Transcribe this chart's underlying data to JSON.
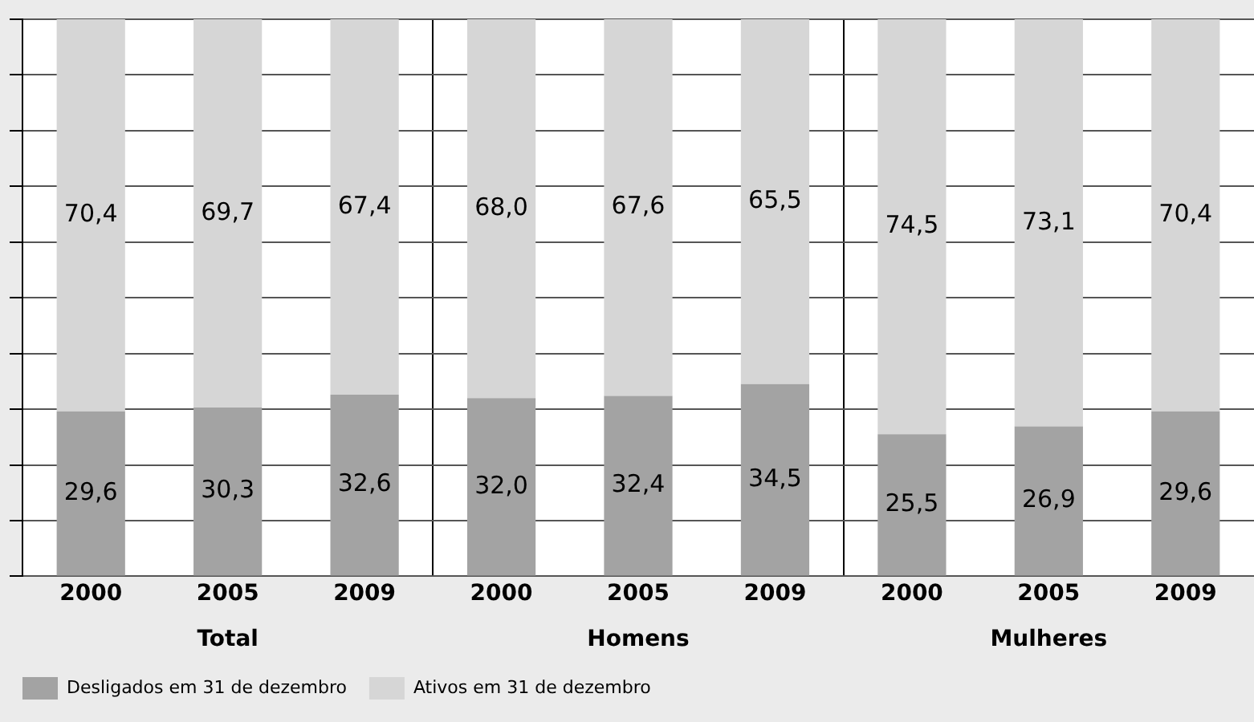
{
  "chart_data": {
    "type": "bar",
    "stacked": true,
    "categories": [
      "2000",
      "2005",
      "2009",
      "2000",
      "2005",
      "2009",
      "2000",
      "2005",
      "2009"
    ],
    "series": [
      {
        "name": "Desligados em 31 de dezembro",
        "color": "#a3a3a3",
        "values": [
          29.6,
          30.3,
          32.6,
          32.0,
          32.4,
          34.5,
          25.5,
          26.9,
          29.6
        ],
        "value_labels": [
          "29,6",
          "30,3",
          "32,6",
          "32,0",
          "32,4",
          "34,5",
          "25,5",
          "26,9",
          "29,6"
        ]
      },
      {
        "name": "Ativos em 31 de dezembro",
        "color": "#d6d6d6",
        "values": [
          70.4,
          69.7,
          67.4,
          68.0,
          67.6,
          65.5,
          74.5,
          73.1,
          70.4
        ],
        "value_labels": [
          "70,4",
          "69,7",
          "67,4",
          "68,0",
          "67,6",
          "65,5",
          "74,5",
          "73,1",
          "70,4"
        ]
      }
    ],
    "tick_labels": "x",
    "grid": "y",
    "legend": "bottom left",
    "annotations": [
      "Total",
      "Homens",
      "Mulheres"
    ]
  }
}
